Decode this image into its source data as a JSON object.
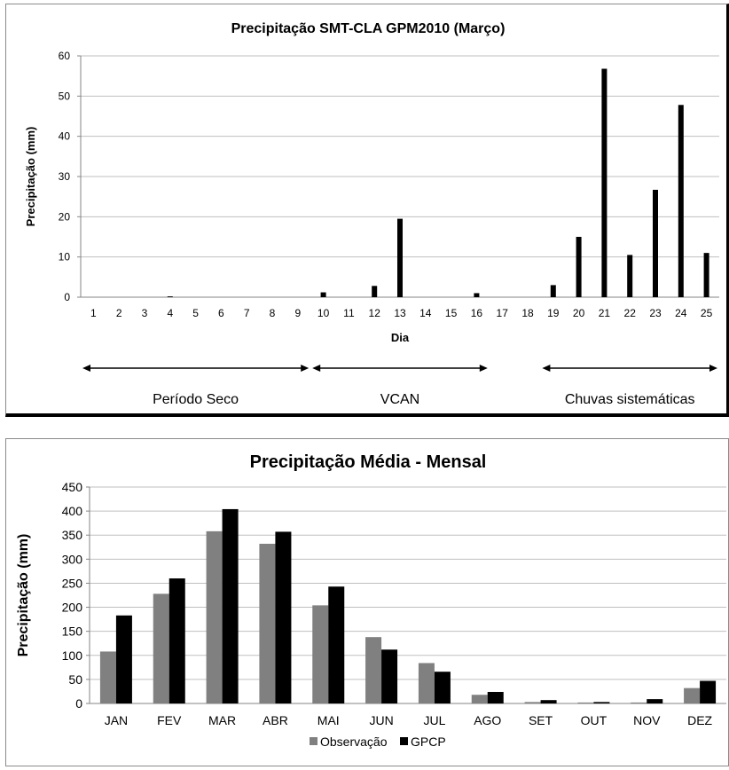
{
  "chart_data": [
    {
      "type": "bar",
      "title": "Precipitação SMT-CLA GPM2010 (Março)",
      "xlabel": "Dia",
      "ylabel": "Precipitação (mm)",
      "ylim": [
        0,
        60
      ],
      "yticks": [
        0,
        10,
        20,
        30,
        40,
        50,
        60
      ],
      "grid": true,
      "categories": [
        "1",
        "2",
        "3",
        "4",
        "5",
        "6",
        "7",
        "8",
        "9",
        "10",
        "11",
        "12",
        "13",
        "14",
        "15",
        "16",
        "17",
        "18",
        "19",
        "20",
        "21",
        "22",
        "23",
        "24",
        "25"
      ],
      "values": [
        0,
        0,
        0,
        0.2,
        0,
        0,
        0,
        0,
        0,
        1.2,
        0,
        2.8,
        19.5,
        0,
        0,
        1.0,
        0,
        0,
        3.0,
        15.0,
        56.8,
        10.5,
        26.7,
        47.8,
        11.0
      ],
      "bar_color": "#000000",
      "annotations": [
        {
          "label": "Período Seco",
          "from": "1",
          "to": "9"
        },
        {
          "label": "VCAN",
          "from": "10",
          "to": "16"
        },
        {
          "label": "Chuvas sistemáticas",
          "from": "19",
          "to": "25"
        }
      ]
    },
    {
      "type": "bar",
      "title": "Precipitação  Média - Mensal",
      "xlabel": "",
      "ylabel": "Precipitação (mm)",
      "ylim": [
        0,
        450
      ],
      "yticks": [
        0,
        50,
        100,
        150,
        200,
        250,
        300,
        350,
        400,
        450
      ],
      "grid": true,
      "legend": "bottom",
      "categories": [
        "JAN",
        "FEV",
        "MAR",
        "ABR",
        "MAI",
        "JUN",
        "JUL",
        "AGO",
        "SET",
        "OUT",
        "NOV",
        "DEZ"
      ],
      "series": [
        {
          "name": "Observação",
          "color": "#808080",
          "values": [
            108,
            228,
            358,
            332,
            204,
            138,
            84,
            18,
            3,
            2,
            2,
            32
          ]
        },
        {
          "name": "GPCP",
          "color": "#000000",
          "values": [
            183,
            260,
            404,
            357,
            243,
            112,
            66,
            24,
            7,
            3,
            9,
            47
          ]
        }
      ]
    }
  ]
}
